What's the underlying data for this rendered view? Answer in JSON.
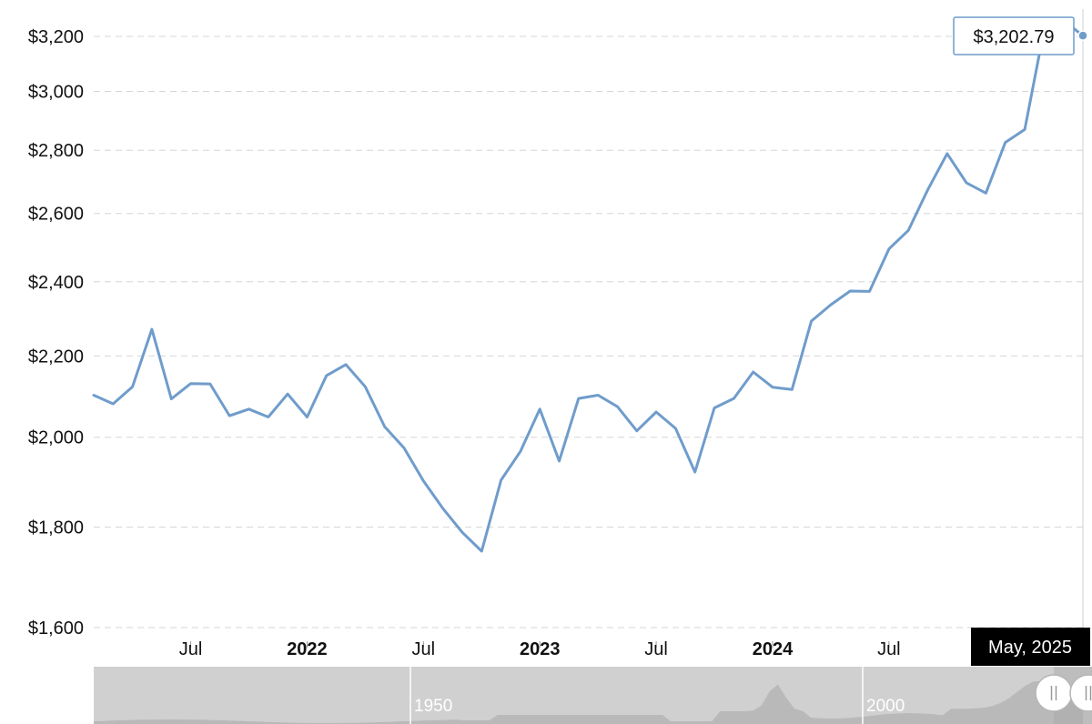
{
  "chart_data": {
    "type": "line",
    "title": "",
    "xlabel": "",
    "ylabel": "",
    "y_scale": "log",
    "ylim": [
      1600,
      3300
    ],
    "grid": true,
    "legend": "none",
    "y_ticks": [
      1600,
      1800,
      2000,
      2200,
      2400,
      2600,
      2800,
      3000,
      3200
    ],
    "y_tick_labels": [
      "$1,600",
      "$1,800",
      "$2,000",
      "$2,200",
      "$2,400",
      "$2,600",
      "$2,800",
      "$3,000",
      "$3,200"
    ],
    "x_ticks": [
      {
        "date": "2021-07",
        "label": "Jul",
        "major": false
      },
      {
        "date": "2022-01",
        "label": "2022",
        "major": true
      },
      {
        "date": "2022-07",
        "label": "Jul",
        "major": false
      },
      {
        "date": "2023-01",
        "label": "2023",
        "major": true
      },
      {
        "date": "2023-07",
        "label": "Jul",
        "major": false
      },
      {
        "date": "2024-01",
        "label": "2024",
        "major": true
      },
      {
        "date": "2024-07",
        "label": "Jul",
        "major": false
      }
    ],
    "x_range": [
      "2021-02",
      "2025-05"
    ],
    "series": [
      {
        "color": "#6f9ccb",
        "x": [
          "2021-02",
          "2021-03",
          "2021-04",
          "2021-05",
          "2021-06",
          "2021-07",
          "2021-08",
          "2021-09",
          "2021-10",
          "2021-11",
          "2021-12",
          "2022-01",
          "2022-02",
          "2022-03",
          "2022-04",
          "2022-05",
          "2022-06",
          "2022-07",
          "2022-08",
          "2022-09",
          "2022-10",
          "2022-11",
          "2022-12",
          "2023-01",
          "2023-02",
          "2023-03",
          "2023-04",
          "2023-05",
          "2023-06",
          "2023-07",
          "2023-08",
          "2023-09",
          "2023-10",
          "2023-11",
          "2023-12",
          "2024-01",
          "2024-02",
          "2024-03",
          "2024-04",
          "2024-05",
          "2024-06",
          "2024-07",
          "2024-08",
          "2024-09",
          "2024-10",
          "2024-11",
          "2024-12",
          "2025-01",
          "2025-02",
          "2025-03",
          "2025-04",
          "2025-05"
        ],
        "y": [
          2101,
          2080,
          2122,
          2270,
          2092,
          2130,
          2129,
          2051,
          2067,
          2048,
          2104,
          2048,
          2150,
          2178,
          2122,
          2025,
          1975,
          1900,
          1840,
          1789,
          1750,
          1902,
          1967,
          2067,
          1945,
          2093,
          2101,
          2073,
          2015,
          2060,
          2021,
          1920,
          2070,
          2093,
          2159,
          2121,
          2115,
          2292,
          2336,
          2374,
          2373,
          2494,
          2549,
          2673,
          2789,
          2695,
          2663,
          2826,
          2869,
          3226,
          3260,
          3202.79
        ]
      }
    ],
    "tooltip": {
      "value_label": "$3,202.79",
      "date_label": "May, 2025"
    },
    "navigator": {
      "labels": [
        "1950",
        "2000"
      ]
    }
  }
}
